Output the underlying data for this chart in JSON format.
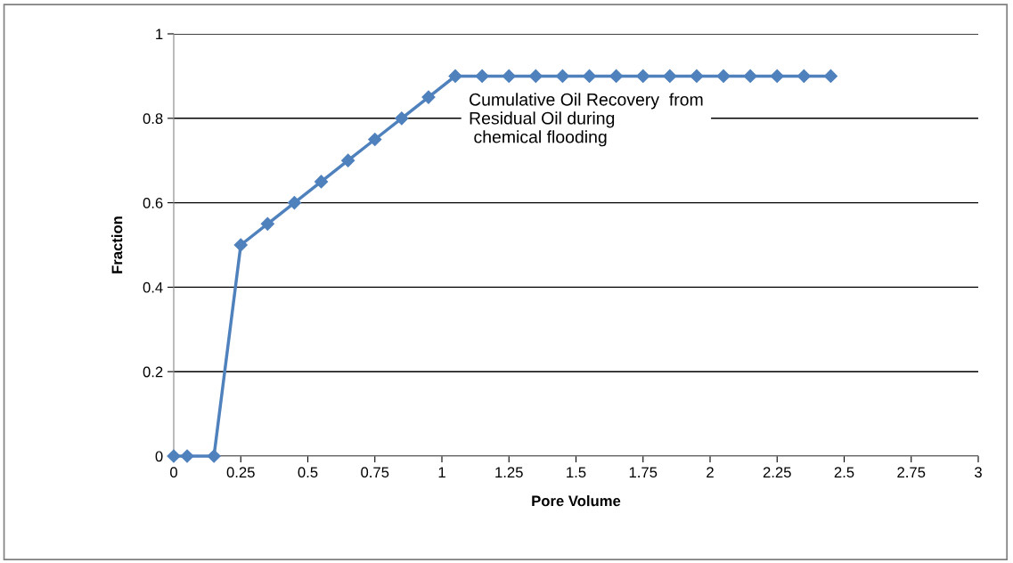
{
  "chart_data": {
    "type": "line",
    "xlabel": "Pore Volume",
    "ylabel": "Fraction",
    "x": [
      0,
      0.05,
      0.15,
      0.25,
      0.35,
      0.45,
      0.55,
      0.65,
      0.75,
      0.85,
      0.95,
      1.05,
      1.15,
      1.25,
      1.35,
      1.45,
      1.55,
      1.65,
      1.75,
      1.85,
      1.95,
      2.05,
      2.15,
      2.25,
      2.35,
      2.45
    ],
    "series": [
      {
        "color": "#4f81bd",
        "values": [
          0,
          0,
          0,
          0.5,
          0.55,
          0.6,
          0.65,
          0.7,
          0.75,
          0.8,
          0.85,
          0.9,
          0.9,
          0.9,
          0.9,
          0.9,
          0.9,
          0.9,
          0.9,
          0.9,
          0.9,
          0.9,
          0.9,
          0.9,
          0.9,
          0.9
        ]
      }
    ],
    "xlim": [
      0,
      3
    ],
    "ylim": [
      0,
      1
    ],
    "xticks": [
      0,
      0.25,
      0.5,
      0.75,
      1,
      1.25,
      1.5,
      1.75,
      2,
      2.25,
      2.5,
      2.75,
      3
    ],
    "yticks": [
      0,
      0.2,
      0.4,
      0.6,
      0.8,
      1
    ],
    "grid": "y",
    "marker": "diamond",
    "line_style": "solid",
    "legend": false,
    "annotations": [
      "Cumulative Oil Recovery  from\nResidual Oil during\n chemical flooding"
    ]
  }
}
